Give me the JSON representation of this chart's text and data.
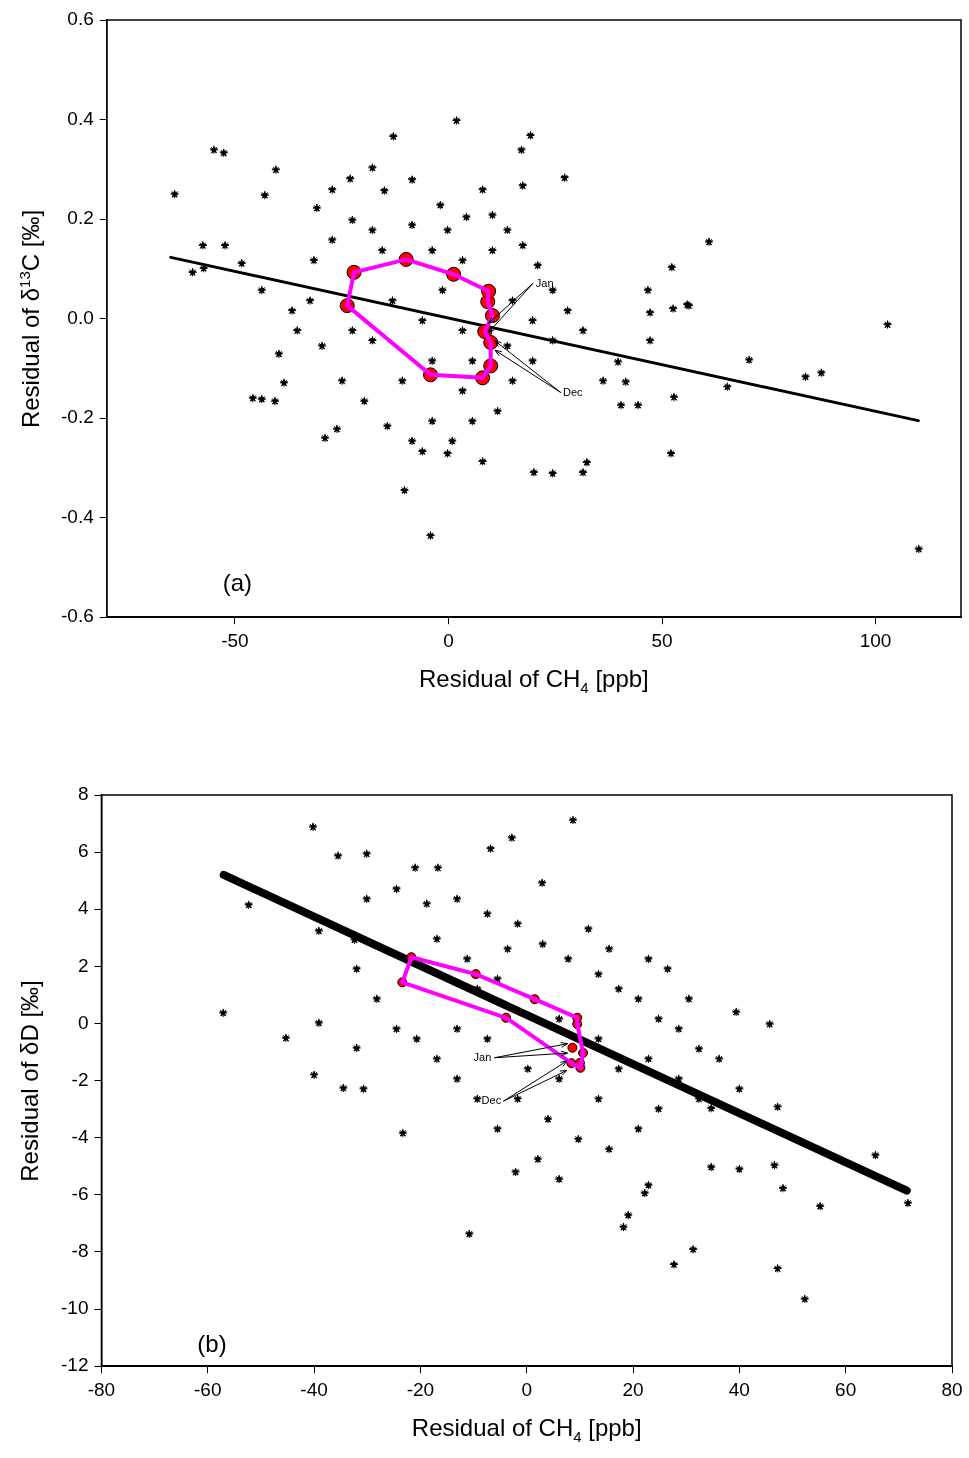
{
  "chart_data": [
    {
      "type": "scatter",
      "xlabel": "Residual of CH$_{4}$ [ppb]",
      "ylabel": "Residual of δ$^{13}$C [‰]",
      "xlim": [
        -80,
        120
      ],
      "xticks": [
        -50,
        0,
        50,
        100
      ],
      "ylim": [
        -0.6,
        0.6
      ],
      "yticks": [
        -0.6,
        -0.4,
        -0.2,
        {
          "value": 0,
          "label": "0.0"
        },
        0.2,
        0.4,
        0.6
      ],
      "annotations": [
        "(a)",
        {
          "text": "Jan",
          "x": 8.5,
          "y": -0.026
        },
        {
          "text": "Dec",
          "x": 9.9,
          "y": -0.048
        }
      ],
      "series": [
        {
          "type": "scatter",
          "marker": "star",
          "color": "#000000",
          "x": [
            -64.1,
            -59.9,
            -57.5,
            -54.9,
            -52.6,
            -52.3,
            -57.3,
            -48.4,
            -45.8,
            -43.7,
            -43.0,
            -40.4,
            -39.7,
            -40.6,
            -38.5,
            -28.9,
            -26.1,
            -12.9,
            -10.3,
            1.9,
            -4.2,
            17.1,
            19.2,
            27.2,
            24.4,
            20.0,
            32.4,
            31.5,
            39.7,
            41.5,
            44.4,
            40.4,
            46.7,
            47.2,
            47.2,
            52.3,
            52.6,
            52.8,
            52.1,
            55.9,
            56.3,
            61.0,
            65.3,
            70.4,
            83.6,
            87.3,
            102.8,
            110.1,
            36.2,
            17.4,
            -30.8,
            -27.2,
            -23.0,
            -17.8,
            -15.0,
            -8.5,
            -1.9,
            4.2,
            10.3,
            13.8,
            17.4,
            20.9,
            24.4,
            27.9,
            31.5,
            24.4,
            19.7,
            15.0,
            11.5,
            5.6,
            0.9,
            -3.8,
            -8.5,
            -14.3,
            -19.7,
            -24.9,
            -29.6,
            -32.4,
            -31.5,
            -27.2,
            -17.8,
            -8.5,
            -13.1,
            -6.1,
            -1.4,
            3.3,
            5.6,
            -3.8,
            -10.8,
            -17.8,
            -22.5,
            15.0,
            19.7,
            13.8,
            3.3,
            8.0,
            -0.2,
            -6.1,
            -36.6,
            -35.4,
            -43.7,
            10.3,
            3.3,
            -3.8,
            -15.5,
            -22.5,
            8.0,
            -0.2
          ],
          "values": [
            0.25,
            0.093,
            0.147,
            0.339,
            0.333,
            0.147,
            0.101,
            0.111,
            -0.16,
            -0.162,
            0.248,
            0.299,
            -0.071,
            -0.166,
            -0.129,
            -0.24,
            -0.222,
            0.366,
            -0.345,
            0.398,
            -0.436,
            0.339,
            0.368,
            0.283,
            -0.311,
            -0.309,
            -0.289,
            -0.309,
            -0.087,
            -0.127,
            -0.174,
            -0.174,
            0.057,
            0.012,
            -0.044,
            0.103,
            0.02,
            -0.158,
            -0.271,
            0.028,
            0.026,
            0.154,
            -0.137,
            -0.083,
            -0.117,
            -0.109,
            -0.012,
            -0.463,
            -0.125,
            0.267,
            0.222,
            0.259,
            0.281,
            0.303,
            0.257,
            0.279,
            0.228,
            0.204,
            0.208,
            0.178,
            0.147,
            0.107,
            0.057,
            0.016,
            -0.024,
            -0.044,
            -0.085,
            -0.125,
            -0.186,
            -0.206,
            -0.246,
            -0.206,
            -0.246,
            -0.216,
            -0.166,
            -0.125,
            -0.055,
            0.036,
            0.117,
            0.158,
            0.178,
            0.188,
            0.036,
            -0.004,
            0.057,
            -0.024,
            -0.085,
            -0.085,
            -0.125,
            -0.044,
            -0.024,
            0.036,
            -0.004,
            -0.055,
            -0.145,
            -0.287,
            -0.271,
            -0.267,
            0.016,
            -0.024,
            0.057,
            0.137,
            0.117,
            0.137,
            0.137,
            0.198,
            0.259,
            0.178
          ]
        },
        {
          "type": "line",
          "marker": "none",
          "color": "#000000",
          "x": [
            -65,
            110
          ],
          "values": [
            0.123,
            -0.205
          ]
        },
        {
          "type": "line",
          "marker": "none",
          "color": "#ff00ff",
          "x": [
            -23.7,
            -22.1,
            -9.9,
            1.2,
            9.4,
            9.2,
            10.3,
            8.5,
            9.9,
            9.9,
            8.0
          ],
          "values": [
            0.026,
            0.093,
            0.119,
            0.089,
            0.055,
            0.034,
            0.006,
            -0.026,
            -0.048,
            -0.095,
            -0.119
          ]
        },
        {
          "type": "line",
          "marker": "none",
          "color": "#ff00ff",
          "x": [
            8.0,
            -4.2,
            -23.7
          ],
          "values": [
            -0.119,
            -0.113,
            0.026
          ]
        },
        {
          "type": "scatter",
          "marker": "circle",
          "color": "#ff0000",
          "x": [
            8.5,
            10.3,
            9.2,
            9.4,
            1.2,
            -9.9,
            -22.1,
            -23.7,
            -4.2,
            8.0,
            9.9,
            9.9
          ],
          "values": [
            -0.026,
            0.006,
            0.034,
            0.055,
            0.089,
            0.119,
            0.093,
            0.026,
            -0.113,
            -0.119,
            -0.095,
            -0.048
          ]
        }
      ]
    },
    {
      "type": "scatter",
      "xlabel": "Residual of CH$_{4}$ [ppb]",
      "ylabel": "Residual of δD [‰]",
      "xlim": [
        -80,
        80
      ],
      "xticks": [
        -80,
        -60,
        -40,
        -20,
        0,
        20,
        40,
        60,
        80
      ],
      "ylim": [
        -12,
        8
      ],
      "yticks": [
        -12,
        -10,
        -8,
        -6,
        -4,
        -2,
        0,
        2,
        4,
        6,
        8
      ],
      "annotations": [
        "(b)",
        {
          "text": "Jan",
          "x": 8.6,
          "y": -0.85
        },
        {
          "text": "Dec",
          "x": 8.4,
          "y": -1.39
        }
      ],
      "series": [
        {
          "type": "scatter",
          "marker": "star",
          "color": "#000000",
          "x": [
            -57.1,
            -52.3,
            -45.3,
            -40.2,
            -40.0,
            -39.1,
            -39.1,
            -35.5,
            -34.5,
            -32.4,
            -32.0,
            -30.7,
            -30.1,
            -23.3,
            -21.0,
            -16.7,
            -10.8,
            -6.8,
            -2.8,
            -2.1,
            8.7,
            2.9,
            18.2,
            19.1,
            22.2,
            22.9,
            27.7,
            31.3,
            34.7,
            40.0,
            39.4,
            45.7,
            46.6,
            47.2,
            47.2,
            48.2,
            52.3,
            55.2,
            65.6,
            71.7,
            26.5,
            34.7,
            -30.1,
            -24.5,
            -18.8,
            -13.1,
            -7.4,
            -1.7,
            3.0,
            7.8,
            13.5,
            17.3,
            21.0,
            24.8,
            28.6,
            32.4,
            36.2,
            40.0,
            32.4,
            24.8,
            21.0,
            15.5,
            9.7,
            4.0,
            -1.7,
            -5.5,
            -9.3,
            -13.1,
            -16.9,
            -20.7,
            -24.5,
            -28.2,
            -32.0,
            -16.9,
            -11.2,
            -5.5,
            6.1,
            13.5,
            17.3,
            13.5,
            6.1,
            0.2,
            -7.4,
            -13.1,
            -9.3,
            -3.6,
            11.6,
            15.5,
            22.9,
            30.5,
            6.1,
            2.1,
            22.9,
            28.6
          ],
          "values": [
            0.37,
            4.15,
            -0.51,
            6.88,
            -1.8,
            0.02,
            3.24,
            5.87,
            -2.26,
            2.93,
            -0.86,
            -2.29,
            5.94,
            -3.84,
            5.45,
            5.45,
            -7.37,
            6.12,
            6.5,
            -5.2,
            7.12,
            4.92,
            -7.13,
            -6.71,
            -5.94,
            -5.66,
            -8.44,
            -7.91,
            -5.03,
            -5.1,
            0.4,
            -0.02,
            -4.96,
            -2.92,
            -8.58,
            -5.77,
            -9.65,
            -6.4,
            -4.61,
            -6.29,
            1.91,
            -2.97,
            4.36,
            4.71,
            4.19,
            4.36,
            3.84,
            3.49,
            2.78,
            2.26,
            1.73,
            1.21,
            0.86,
            0.16,
            -0.19,
            -0.89,
            -1.24,
            -2.29,
            -2.64,
            -2.99,
            -3.69,
            -4.4,
            -4.05,
            -3.35,
            -2.64,
            -3.69,
            -2.64,
            -1.94,
            -1.24,
            -0.54,
            -0.19,
            0.86,
            1.91,
            2.96,
            2.26,
            1.56,
            0.16,
            -0.54,
            -1.59,
            -2.64,
            -1.94,
            -1.59,
            -0.54,
            -0.19,
            1.21,
            2.61,
            3.31,
            2.61,
            2.26,
            0.86,
            -5.45,
            -4.75,
            -1.24,
            -1.94
          ]
        },
        {
          "type": "line",
          "marker": "none",
          "color": "#000000",
          "x": [
            -57,
            71.5
          ],
          "values": [
            5.2,
            -5.85
          ]
        },
        {
          "type": "line",
          "marker": "none",
          "color": "#ff00ff",
          "x": [
            -23.4,
            -21.7,
            -9.6,
            1.5,
            9.5,
            9.5,
            10.6,
            10.1
          ],
          "values": [
            1.44,
            2.32,
            1.73,
            0.85,
            0.2,
            -0.02,
            -1.03,
            -1.55
          ]
        },
        {
          "type": "line",
          "marker": "none",
          "color": "#ff00ff",
          "x": [
            10.1,
            8.4,
            -3.9,
            -23.4
          ],
          "values": [
            -1.55,
            -1.39,
            0.2,
            1.44
          ]
        },
        {
          "type": "scatter",
          "marker": "circle",
          "color": "#ff0000",
          "x": [
            8.6,
            10.6,
            9.5,
            9.5,
            1.5,
            -9.6,
            -21.7,
            -23.4,
            -3.9,
            8.4,
            10.1,
            10.0
          ],
          "values": [
            -0.85,
            -1.03,
            -0.02,
            0.2,
            0.85,
            1.73,
            2.32,
            1.44,
            0.2,
            -1.39,
            -1.55,
            -1.38
          ]
        }
      ]
    }
  ]
}
